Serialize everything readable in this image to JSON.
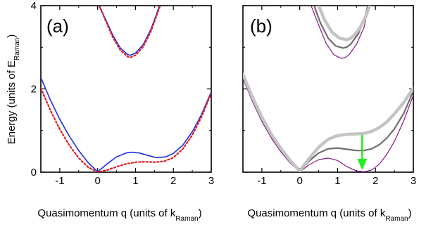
{
  "chart_data": {
    "type": "line",
    "ylabel": {
      "main": "Energy (units of E",
      "sub": "Raman",
      "close": ")"
    },
    "xlabel": {
      "main": "Quasimomentum q (units of k",
      "sub": "Raman",
      "close": ")"
    },
    "xlim": [
      -1.5,
      3
    ],
    "ylim": [
      0,
      4
    ],
    "xticks": [
      "-1",
      "0",
      "1",
      "2",
      "3"
    ],
    "xtick_values": [
      -1,
      0,
      1,
      2,
      3
    ],
    "yticks": [
      "0",
      "2",
      "4"
    ],
    "ytick_values": [
      0,
      2,
      4
    ],
    "grid": false,
    "panels": [
      {
        "label": "(a)",
        "series": [
          {
            "style": "solid",
            "color": "#1f2ee6",
            "width": 1.6,
            "dash": "",
            "x": [
              -1.5,
              -1.25,
              -1.0,
              -0.75,
              -0.5,
              -0.25,
              0.0,
              0.25,
              0.5,
              0.75,
              0.9,
              1.1,
              1.3,
              1.5,
              1.6,
              1.8,
              2.0,
              2.25,
              2.5,
              2.75,
              3.0
            ],
            "y": [
              2.27,
              1.74,
              1.27,
              0.87,
              0.52,
              0.23,
              0.01,
              0.2,
              0.37,
              0.46,
              0.48,
              0.46,
              0.41,
              0.36,
              0.35,
              0.37,
              0.45,
              0.65,
              0.97,
              1.4,
              1.93
            ]
          },
          {
            "style": "dotted",
            "color": "#e41a1c",
            "width": 2.2,
            "dash": "2.2 3",
            "x": [
              -1.5,
              -1.25,
              -1.0,
              -0.75,
              -0.5,
              -0.25,
              0.0,
              0.25,
              0.5,
              0.75,
              1.0,
              1.25,
              1.5,
              1.75,
              2.0,
              2.25,
              2.5,
              2.75,
              3.0
            ],
            "y": [
              2.02,
              1.49,
              1.03,
              0.65,
              0.34,
              0.12,
              0.0,
              0.05,
              0.13,
              0.2,
              0.24,
              0.25,
              0.24,
              0.26,
              0.35,
              0.56,
              0.89,
              1.34,
              1.9
            ]
          },
          {
            "style": "solid",
            "color": "#1f2ee6",
            "width": 1.6,
            "dash": "",
            "x": [
              0.03,
              0.2,
              0.4,
              0.6,
              0.8,
              0.87,
              1.0,
              1.2,
              1.4,
              1.55,
              1.63
            ],
            "y": [
              4.0,
              3.69,
              3.29,
              2.98,
              2.82,
              2.81,
              2.86,
              3.06,
              3.42,
              3.78,
              4.0
            ]
          },
          {
            "style": "dotted",
            "color": "#e41a1c",
            "width": 2.2,
            "dash": "2.2 3",
            "x": [
              0.05,
              0.2,
              0.4,
              0.6,
              0.8,
              0.87,
              1.0,
              1.2,
              1.4,
              1.55,
              1.65
            ],
            "y": [
              4.0,
              3.66,
              3.24,
              2.93,
              2.77,
              2.76,
              2.81,
              3.01,
              3.37,
              3.74,
              4.0
            ]
          }
        ],
        "arrow": null
      },
      {
        "label": "(b)",
        "series": [
          {
            "style": "solid",
            "color": "#800080",
            "width": 1.1,
            "dash": "",
            "x": [
              -1.5,
              -1.25,
              -1.0,
              -0.75,
              -0.5,
              -0.25,
              0.0,
              0.25,
              0.5,
              0.75,
              1.0,
              1.25,
              1.5,
              1.7,
              1.9,
              2.1,
              2.3,
              2.5,
              2.75,
              3.0
            ],
            "y": [
              2.25,
              1.7,
              1.22,
              0.82,
              0.49,
              0.22,
              0.01,
              0.18,
              0.3,
              0.34,
              0.28,
              0.13,
              0.03,
              0.01,
              0.05,
              0.19,
              0.43,
              0.74,
              1.24,
              1.85
            ]
          },
          {
            "style": "solid",
            "color": "#6e6e6e",
            "width": 2.2,
            "dash": "",
            "x": [
              -1.5,
              -1.25,
              -1.0,
              -0.75,
              -0.5,
              -0.25,
              0.0,
              0.25,
              0.5,
              0.75,
              1.0,
              1.25,
              1.5,
              1.7,
              1.9,
              2.1,
              2.3,
              2.5,
              2.75,
              3.0
            ],
            "y": [
              2.3,
              1.75,
              1.27,
              0.87,
              0.53,
              0.25,
              0.02,
              0.27,
              0.46,
              0.56,
              0.58,
              0.55,
              0.52,
              0.52,
              0.56,
              0.66,
              0.82,
              1.04,
              1.42,
              1.95
            ]
          },
          {
            "style": "solid",
            "color": "#c4c4c4",
            "width": 4.5,
            "dash": "",
            "x": [
              -1.5,
              -1.25,
              -1.0,
              -0.75,
              -0.5,
              -0.25,
              0.0,
              0.25,
              0.5,
              0.75,
              1.0,
              1.25,
              1.5,
              1.7,
              1.9,
              2.1,
              2.3,
              2.5,
              2.75,
              3.0
            ],
            "y": [
              2.35,
              1.8,
              1.32,
              0.91,
              0.57,
              0.28,
              0.03,
              0.33,
              0.6,
              0.79,
              0.88,
              0.91,
              0.92,
              0.93,
              0.98,
              1.07,
              1.21,
              1.4,
              1.68,
              2.02
            ]
          },
          {
            "style": "solid",
            "color": "#800080",
            "width": 1.1,
            "dash": "",
            "x": [
              0.3,
              0.5,
              0.7,
              0.9,
              1.1,
              1.2,
              1.3,
              1.5,
              1.7,
              1.82
            ],
            "y": [
              4.0,
              3.53,
              3.09,
              2.82,
              2.73,
              2.75,
              2.82,
              3.07,
              3.48,
              4.0
            ]
          },
          {
            "style": "solid",
            "color": "#6e6e6e",
            "width": 2.2,
            "dash": "",
            "x": [
              0.38,
              0.55,
              0.75,
              0.95,
              1.15,
              1.25,
              1.35,
              1.55,
              1.72,
              1.8
            ],
            "y": [
              4.0,
              3.58,
              3.22,
              3.03,
              2.98,
              3.01,
              3.08,
              3.33,
              3.72,
              4.0
            ]
          },
          {
            "style": "solid",
            "color": "#c4c4c4",
            "width": 4.5,
            "dash": "",
            "x": [
              0.5,
              0.65,
              0.85,
              1.05,
              1.25,
              1.35,
              1.45,
              1.6,
              1.75,
              1.85
            ],
            "y": [
              4.0,
              3.67,
              3.36,
              3.22,
              3.18,
              3.22,
              3.3,
              3.48,
              3.75,
              4.0
            ]
          }
        ],
        "arrow": {
          "color": "#22ee22",
          "x": 1.65,
          "y_from": 0.88,
          "y_to": 0.05
        }
      }
    ]
  }
}
